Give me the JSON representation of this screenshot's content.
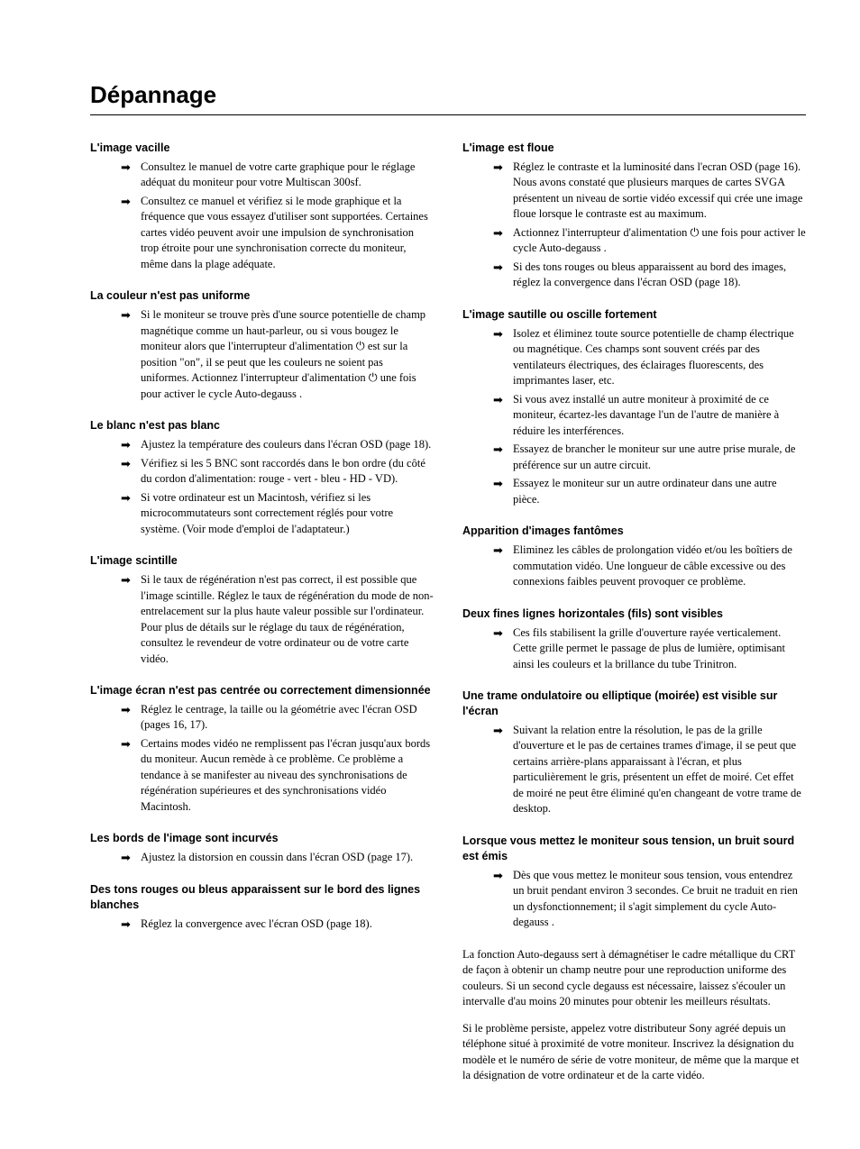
{
  "title": "Dépannage",
  "columns": [
    {
      "sections": [
        {
          "title": "L'image vacille",
          "items": [
            "Consultez le manuel de votre carte graphique pour le réglage adéquat du moniteur pour votre Multiscan 300sf.",
            "Consultez ce manuel et vérifiez si le mode graphique et la fréquence que vous essayez d'utiliser sont supportées. Certaines cartes vidéo peuvent avoir une impulsion de synchronisation trop étroite pour une synchronisation correcte du moniteur, même dans la plage adéquate."
          ]
        },
        {
          "title": "La couleur n'est pas uniforme",
          "items": [
            "Si le moniteur se trouve près d'une source potentielle de champ magnétique comme un haut-parleur, ou si vous bougez le moniteur alors que l'interrupteur d'alimentation ⏻ est sur la position \"on\", il se peut que les couleurs ne soient pas uniformes. Actionnez l'interrupteur d'alimentation ⏻ une fois pour activer le cycle Auto-degauss  ."
          ]
        },
        {
          "title": "Le blanc n'est pas blanc",
          "items": [
            "Ajustez la température des couleurs dans l'écran OSD (page 18).",
            "Vérifiez si les 5 BNC sont raccordés dans le bon ordre (du côté du cordon d'alimentation: rouge - vert - bleu - HD - VD).",
            "Si votre ordinateur est un Macintosh, vérifiez si les microcommutateurs sont correctement réglés pour votre système. (Voir mode d'emploi de l'adaptateur.)"
          ]
        },
        {
          "title": "L'image scintille",
          "items": [
            "Si le taux de régénération n'est pas correct, il est possible que l'image scintille. Réglez le taux de régénération du mode de non-entrelacement sur la plus haute valeur possible sur l'ordinateur. Pour plus de détails sur le réglage du taux de régénération, consultez le revendeur de votre ordinateur ou de votre carte vidéo."
          ]
        },
        {
          "title": "L'image écran n'est pas centrée ou correctement dimensionnée",
          "items": [
            "Réglez le centrage, la taille ou la géométrie avec l'écran OSD (pages 16, 17).",
            "Certains modes vidéo ne remplissent pas l'écran jusqu'aux bords du moniteur. Aucun remède à ce problème. Ce problème a tendance à se manifester au niveau des synchronisations de régénération supérieures et des synchronisations vidéo Macintosh."
          ]
        },
        {
          "title": "Les bords de l'image sont incurvés",
          "items": [
            "Ajustez la distorsion en coussin dans l'écran OSD (page 17)."
          ]
        },
        {
          "title": "Des tons rouges ou bleus apparaissent sur le bord des lignes blanches",
          "items": [
            "Réglez la convergence avec l'écran OSD (page 18)."
          ]
        }
      ],
      "closing": []
    },
    {
      "sections": [
        {
          "title": "L'image est floue",
          "items": [
            "Réglez le contraste et la luminosité dans l'ecran OSD (page 16). Nous avons constaté que plusieurs marques de cartes SVGA présentent un niveau de sortie vidéo excessif qui crée une image floue lorsque le contraste est au maximum.",
            "Actionnez l'interrupteur d'alimentation ⏻ une fois pour activer le cycle Auto-degauss  .",
            "Si des tons rouges ou bleus apparaissent au bord des images, réglez la convergence dans l'écran OSD (page 18)."
          ]
        },
        {
          "title": "L'image sautille ou oscille fortement",
          "items": [
            "Isolez et éliminez toute source potentielle de champ électrique ou magnétique. Ces champs sont souvent créés par des ventilateurs électriques, des éclairages fluorescents, des imprimantes laser, etc.",
            "Si vous avez installé un autre moniteur à proximité de ce moniteur, écartez-les davantage l'un de l'autre de manière à réduire les interférences.",
            "Essayez de brancher le moniteur sur une autre prise murale, de préférence sur un autre circuit.",
            "Essayez le moniteur sur un autre ordinateur dans une autre pièce."
          ]
        },
        {
          "title": "Apparition d'images fantômes",
          "items": [
            "Eliminez les câbles de prolongation vidéo et/ou les boîtiers de commutation vidéo. Une longueur de câble excessive ou des connexions faibles peuvent provoquer ce problème."
          ]
        },
        {
          "title": "Deux fines lignes horizontales (fils) sont visibles",
          "items": [
            "Ces fils stabilisent la grille d'ouverture rayée verticalement. Cette grille permet le passage de plus de lumière, optimisant ainsi les couleurs et la brillance du tube Trinitron."
          ]
        },
        {
          "title": "Une trame ondulatoire ou elliptique (moirée) est visible sur l'écran",
          "items": [
            "Suivant la relation entre la résolution, le pas de la grille d'ouverture et le pas de certaines trames d'image, il se peut que certains arrière-plans apparaissant à l'écran, et plus particulièrement le gris, présentent un effet de moiré. Cet effet de moiré ne peut être éliminé qu'en changeant de votre trame de desktop."
          ]
        },
        {
          "title": "Lorsque vous mettez le moniteur sous tension, un bruit sourd est émis",
          "items": [
            "Dès que vous mettez le moniteur sous tension, vous entendrez un bruit pendant environ 3 secondes. Ce bruit ne traduit en rien un dysfonctionnement; il s'agit simplement du cycle Auto-degauss  ."
          ]
        }
      ],
      "closing": [
        "La fonction Auto-degauss sert à démagnétiser le cadre métallique du CRT de façon à obtenir un champ neutre pour une reproduction uniforme des couleurs. Si un second cycle degauss est nécessaire, laissez s'écouler un intervalle d'au moins 20 minutes pour obtenir les meilleurs résultats.",
        "Si le problème persiste, appelez votre distributeur Sony agréé depuis un téléphone situé à proximité de votre moniteur. Inscrivez la désignation du modèle et le numéro de série de votre moniteur, de même que la marque et la désignation de votre ordinateur et de la carte vidéo."
      ]
    }
  ]
}
